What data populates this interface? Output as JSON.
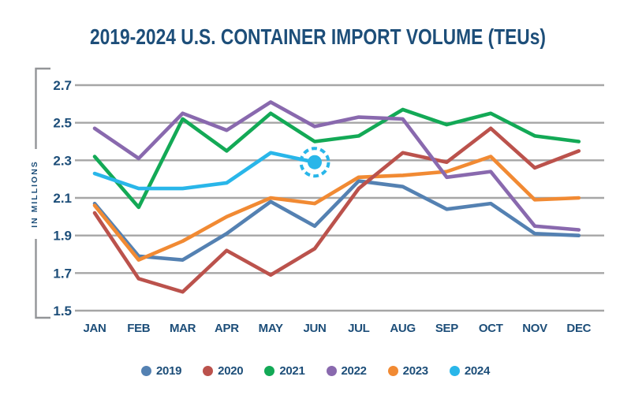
{
  "chart_data": {
    "type": "line",
    "title": "2019-2024 U.S. CONTAINER IMPORT VOLUME (TEUs)",
    "xlabel": "",
    "ylabel": "IN MILLIONS",
    "ylim": [
      1.5,
      2.7
    ],
    "yticks": [
      "2.7",
      "2.5",
      "2.3",
      "2.1",
      "1.9",
      "1.7",
      "1.5"
    ],
    "categories": [
      "JAN",
      "FEB",
      "MAR",
      "APR",
      "MAY",
      "JUN",
      "JUL",
      "AUG",
      "SEP",
      "OCT",
      "NOV",
      "DEC"
    ],
    "grid": true,
    "legend_position": "bottom",
    "series": [
      {
        "name": "2019",
        "color": "#5481b2",
        "values": [
          2.07,
          1.79,
          1.77,
          1.91,
          2.08,
          1.95,
          2.19,
          2.16,
          2.04,
          2.07,
          1.91,
          1.9
        ]
      },
      {
        "name": "2020",
        "color": "#bb524c",
        "values": [
          2.02,
          1.67,
          1.6,
          1.82,
          1.69,
          1.83,
          2.15,
          2.34,
          2.29,
          2.47,
          2.26,
          2.35
        ]
      },
      {
        "name": "2021",
        "color": "#13a956",
        "values": [
          2.32,
          2.05,
          2.52,
          2.35,
          2.55,
          2.4,
          2.43,
          2.57,
          2.49,
          2.55,
          2.43,
          2.4
        ]
      },
      {
        "name": "2022",
        "color": "#8969ae",
        "values": [
          2.47,
          2.31,
          2.55,
          2.46,
          2.61,
          2.48,
          2.53,
          2.52,
          2.21,
          2.24,
          1.95,
          1.93
        ]
      },
      {
        "name": "2023",
        "color": "#f18a33",
        "values": [
          2.06,
          1.77,
          1.87,
          2.0,
          2.1,
          2.07,
          2.21,
          2.22,
          2.24,
          2.32,
          2.09,
          2.1
        ]
      },
      {
        "name": "2024",
        "color": "#29b6e9",
        "values": [
          2.23,
          2.15,
          2.15,
          2.18,
          2.34,
          2.29
        ]
      }
    ],
    "highlight": {
      "series": "2024",
      "category": "JUN",
      "value": 2.29,
      "style": "dot-with-dashed-circle"
    }
  },
  "legend": {
    "items": [
      "2019",
      "2020",
      "2021",
      "2022",
      "2023",
      "2024"
    ]
  },
  "colors": {
    "title_text": "#1d4e79",
    "axis_text": "#1d4e79",
    "gridline": "#a6a6a6",
    "axis_bracket": "#939598",
    "background": "#ffffff"
  }
}
